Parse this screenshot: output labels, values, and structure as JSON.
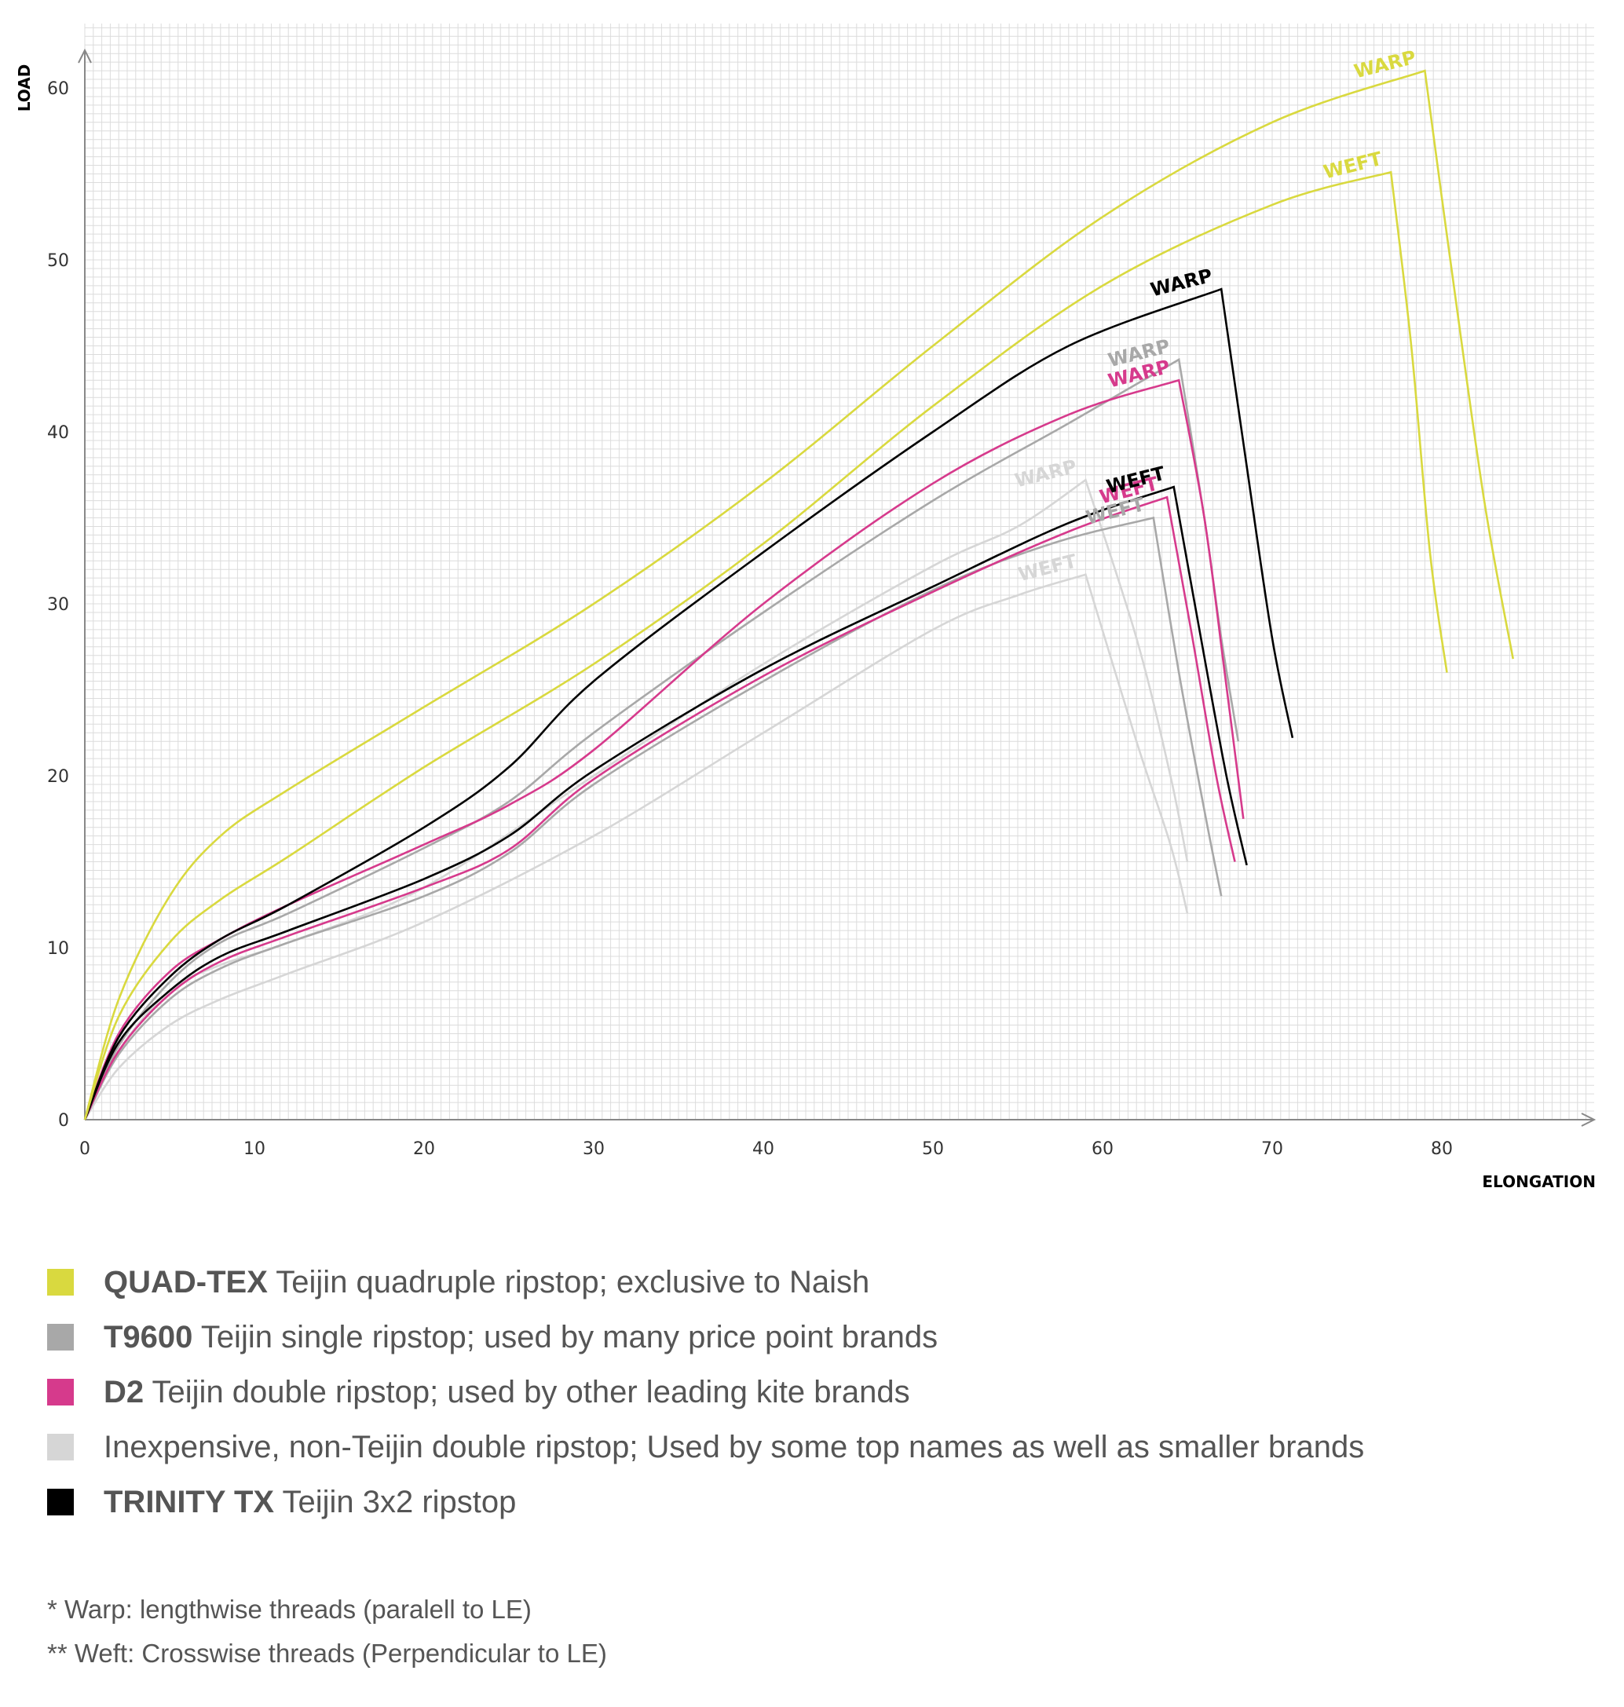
{
  "chart_data": {
    "type": "line",
    "xlabel": "ELONGATION",
    "ylabel": "LOAD",
    "xlim": [
      0,
      85
    ],
    "ylim": [
      0,
      63
    ],
    "x_ticks": [
      0,
      10,
      20,
      30,
      40,
      50,
      60,
      70,
      80
    ],
    "y_ticks": [
      0,
      10,
      20,
      30,
      40,
      50,
      60
    ],
    "grid": true,
    "series": [
      {
        "key": "light-weft",
        "material": "inexpensive",
        "name": "WEFT",
        "color": "#d6d6d6",
        "points": [
          [
            0,
            0
          ],
          [
            2,
            3
          ],
          [
            5,
            5.5
          ],
          [
            8,
            7
          ],
          [
            12,
            8.5
          ],
          [
            20,
            11.5
          ],
          [
            30,
            16.5
          ],
          [
            40,
            22.5
          ],
          [
            50,
            28.5
          ],
          [
            55,
            30.5
          ],
          [
            59,
            31.7
          ],
          [
            62,
            22
          ],
          [
            64,
            16
          ],
          [
            65,
            12
          ]
        ]
      },
      {
        "key": "light-warp",
        "material": "inexpensive",
        "name": "WARP",
        "color": "#d6d6d6",
        "points": [
          [
            0,
            0
          ],
          [
            2,
            4
          ],
          [
            5,
            7.5
          ],
          [
            8,
            9
          ],
          [
            12,
            10.3
          ],
          [
            20,
            13.5
          ],
          [
            30,
            20
          ],
          [
            40,
            26.5
          ],
          [
            50,
            32.2
          ],
          [
            55,
            34.5
          ],
          [
            59,
            37.2
          ],
          [
            62,
            28
          ],
          [
            64,
            20
          ],
          [
            65,
            15
          ]
        ]
      },
      {
        "key": "t9600-weft",
        "material": "t9600",
        "name": "WEFT",
        "color": "#a8a8a8",
        "points": [
          [
            0,
            0
          ],
          [
            2,
            3.8
          ],
          [
            5,
            7
          ],
          [
            8,
            8.8
          ],
          [
            12,
            10.3
          ],
          [
            20,
            13
          ],
          [
            25,
            15.5
          ],
          [
            30,
            19.5
          ],
          [
            40,
            25.5
          ],
          [
            50,
            30.8
          ],
          [
            57,
            33.5
          ],
          [
            63,
            35
          ],
          [
            64.5,
            26
          ],
          [
            66,
            18
          ],
          [
            67,
            13
          ]
        ]
      },
      {
        "key": "t9600-warp",
        "material": "t9600",
        "name": "WARP",
        "color": "#a8a8a8",
        "points": [
          [
            0,
            0
          ],
          [
            2,
            4.3
          ],
          [
            5,
            8
          ],
          [
            8,
            10.3
          ],
          [
            12,
            12
          ],
          [
            20,
            15.8
          ],
          [
            25,
            18.5
          ],
          [
            30,
            22.5
          ],
          [
            40,
            29.5
          ],
          [
            50,
            36
          ],
          [
            58,
            40.5
          ],
          [
            64.5,
            44.2
          ],
          [
            66,
            35
          ],
          [
            67,
            28
          ],
          [
            68,
            22
          ]
        ]
      },
      {
        "key": "d2-weft",
        "material": "d2",
        "name": "WEFT",
        "color": "#d63a8c",
        "points": [
          [
            0,
            0
          ],
          [
            2,
            4
          ],
          [
            5,
            7.3
          ],
          [
            8,
            9.2
          ],
          [
            12,
            10.7
          ],
          [
            20,
            13.5
          ],
          [
            25,
            15.7
          ],
          [
            30,
            19.8
          ],
          [
            40,
            25.8
          ],
          [
            50,
            30.7
          ],
          [
            58,
            34.2
          ],
          [
            63.8,
            36.2
          ],
          [
            65.3,
            28
          ],
          [
            66.7,
            20
          ],
          [
            67.8,
            15
          ]
        ]
      },
      {
        "key": "d2-warp",
        "material": "d2",
        "name": "WARP",
        "color": "#d63a8c",
        "points": [
          [
            0,
            0
          ],
          [
            2,
            5
          ],
          [
            5,
            8.6
          ],
          [
            8,
            10.5
          ],
          [
            12,
            12.5
          ],
          [
            20,
            16
          ],
          [
            25,
            18.3
          ],
          [
            30,
            21.5
          ],
          [
            40,
            30
          ],
          [
            50,
            37
          ],
          [
            58,
            41
          ],
          [
            64.5,
            43
          ],
          [
            66,
            35
          ],
          [
            67.2,
            26
          ],
          [
            68.3,
            17.5
          ]
        ]
      },
      {
        "key": "trinity-weft",
        "material": "trinity",
        "name": "WEFT",
        "color": "#000000",
        "points": [
          [
            0,
            0
          ],
          [
            2,
            4.5
          ],
          [
            5,
            7.5
          ],
          [
            8,
            9.5
          ],
          [
            12,
            11
          ],
          [
            20,
            14
          ],
          [
            25,
            16.5
          ],
          [
            30,
            20.3
          ],
          [
            40,
            26.2
          ],
          [
            50,
            31
          ],
          [
            58,
            34.7
          ],
          [
            64.2,
            36.8
          ],
          [
            65.8,
            28
          ],
          [
            67.3,
            20
          ],
          [
            68.5,
            14.8
          ]
        ]
      },
      {
        "key": "trinity-warp",
        "material": "trinity",
        "name": "WARP",
        "color": "#000000",
        "points": [
          [
            0,
            0
          ],
          [
            2,
            4.8
          ],
          [
            5,
            8.3
          ],
          [
            8,
            10.5
          ],
          [
            12,
            12.5
          ],
          [
            20,
            17
          ],
          [
            25,
            20.5
          ],
          [
            30,
            25.5
          ],
          [
            40,
            33
          ],
          [
            50,
            40
          ],
          [
            58,
            45
          ],
          [
            67,
            48.3
          ],
          [
            68.5,
            38
          ],
          [
            70,
            28
          ],
          [
            71.2,
            22.2
          ]
        ]
      },
      {
        "key": "quadtex-weft",
        "material": "quadtex",
        "name": "WEFT",
        "color": "#d9d93f",
        "points": [
          [
            0,
            0
          ],
          [
            2,
            6
          ],
          [
            5,
            10.3
          ],
          [
            8,
            12.8
          ],
          [
            12,
            15.3
          ],
          [
            20,
            20.5
          ],
          [
            30,
            26.5
          ],
          [
            40,
            33.5
          ],
          [
            50,
            41.5
          ],
          [
            60,
            48.5
          ],
          [
            70,
            53.2
          ],
          [
            77,
            55.1
          ],
          [
            78.2,
            45
          ],
          [
            79.3,
            33
          ],
          [
            80.3,
            26
          ]
        ]
      },
      {
        "key": "quadtex-warp",
        "material": "quadtex",
        "name": "WARP",
        "color": "#d9d93f",
        "points": [
          [
            0,
            0
          ],
          [
            2,
            7
          ],
          [
            5,
            13
          ],
          [
            8,
            16.5
          ],
          [
            12,
            19.2
          ],
          [
            20,
            24
          ],
          [
            30,
            30
          ],
          [
            40,
            37
          ],
          [
            50,
            45
          ],
          [
            60,
            52.5
          ],
          [
            70,
            58
          ],
          [
            79,
            61
          ],
          [
            80.5,
            50
          ],
          [
            82.5,
            36
          ],
          [
            84.2,
            26.8
          ]
        ]
      }
    ],
    "legend": [
      {
        "material": "quadtex",
        "color": "#d9d93f",
        "name": "QUAD-TEX",
        "description": " Teijin quadruple ripstop; exclusive to Naish"
      },
      {
        "material": "t9600",
        "color": "#a8a8a8",
        "name": "T9600",
        "description": " Teijin single ripstop; used by many price point brands"
      },
      {
        "material": "d2",
        "color": "#d63a8c",
        "name": "D2",
        "description": " Teijin double ripstop; used by other leading kite brands"
      },
      {
        "material": "inexpensive",
        "color": "#d6d6d6",
        "name": "",
        "description": "Inexpensive, non-Teijin double ripstop; Used by some top names as well as smaller brands"
      },
      {
        "material": "trinity",
        "color": "#000000",
        "name": "TRINITY TX",
        "description": " Teijin 3x2 ripstop"
      }
    ],
    "footnotes": [
      "* Warp: lengthwise threads (paralell to LE)",
      "** Weft: Crosswise threads (Perpendicular to LE)"
    ]
  }
}
